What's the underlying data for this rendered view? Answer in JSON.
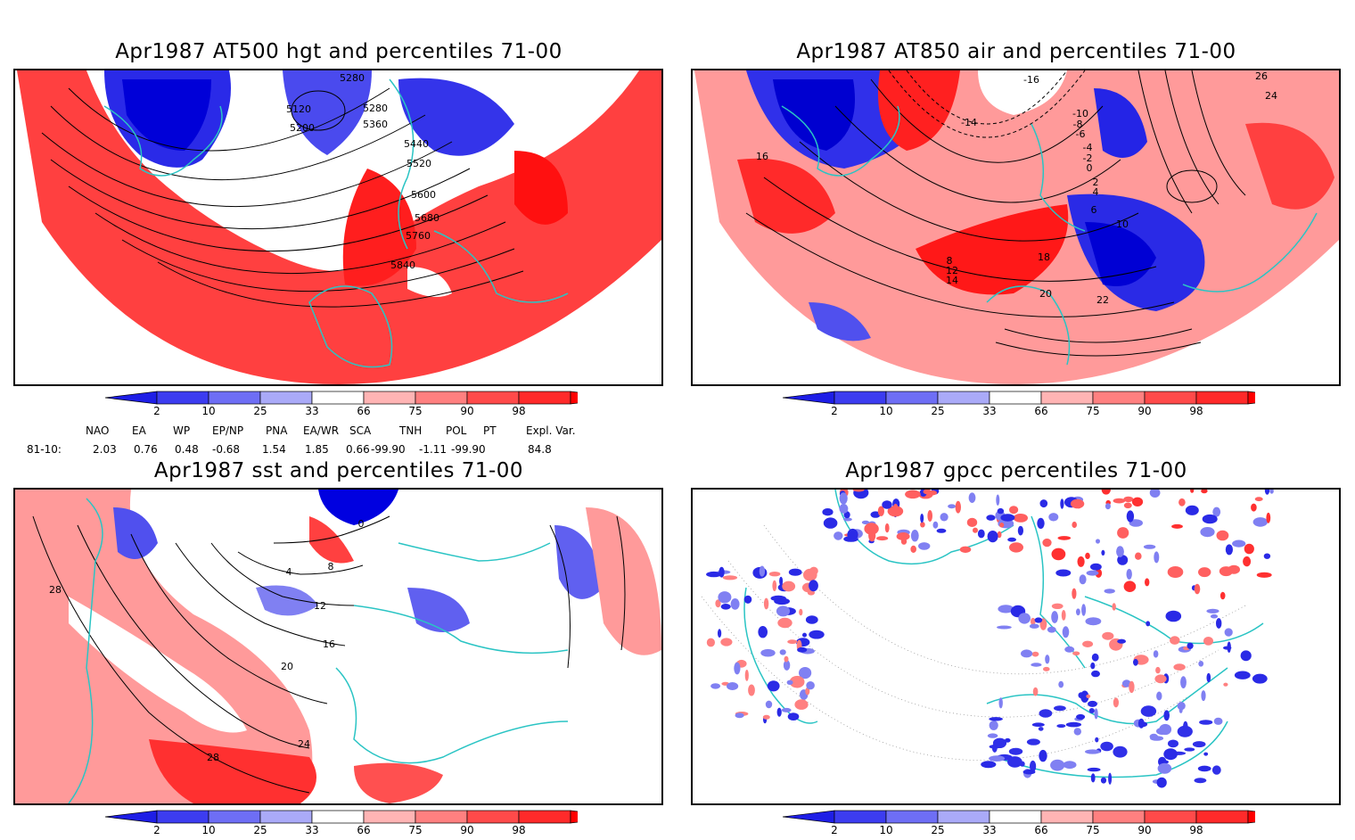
{
  "panels": [
    {
      "id": "p1",
      "title": "Apr1987 AT500 hgt and percentiles 71-00",
      "contour_labels": [
        "5280",
        "5120",
        "5200",
        "5280",
        "5360",
        "5440",
        "5520",
        "5600",
        "5680",
        "5760",
        "5840"
      ]
    },
    {
      "id": "p2",
      "title": "Apr1987 AT850 air and percentiles 71-00",
      "contour_labels": [
        "-16",
        "-14",
        "-10",
        "-8",
        "-6",
        "-4",
        "-2",
        "0",
        "2",
        "4",
        "6",
        "8",
        "10",
        "12",
        "14",
        "16",
        "18",
        "20",
        "22",
        "24",
        "26"
      ]
    },
    {
      "id": "p3",
      "title": "Apr1987 sst and percentiles 71-00",
      "contour_labels": [
        "0",
        "4",
        "8",
        "12",
        "16",
        "20",
        "24",
        "28",
        "28"
      ]
    },
    {
      "id": "p4",
      "title": "Apr1987 gpcc percentiles 71-00",
      "contour_labels": []
    }
  ],
  "colorbar": {
    "ticks": [
      "2",
      "10",
      "25",
      "33",
      "66",
      "75",
      "90",
      "98"
    ],
    "colors": [
      "#1e1ee6",
      "#3c3cf0",
      "#6e6ef5",
      "#aaaaf8",
      "#ffffff",
      "#ffb4b4",
      "#ff8080",
      "#ff4a4a",
      "#ff2a2a",
      "#ff0000"
    ]
  },
  "indices": {
    "headers": [
      "NAO",
      "EA",
      "WP",
      "EP/NP",
      "PNA",
      "EA/WR",
      "SCA",
      "TNH",
      "POL",
      "PT",
      "Expl. Var."
    ],
    "row_label": "81-10:",
    "values": [
      "2.03",
      "0.76",
      "0.48",
      "-0.68",
      "1.54",
      "1.85",
      "0.66",
      "-99.90",
      "-1.11",
      "-99.90",
      "84.8"
    ]
  },
  "colors": {
    "warm": "#ff3c3c",
    "warm_light": "#ff9a9a",
    "cold": "#2828e6",
    "cold_light": "#8080f2",
    "coast": "#2ac4c4",
    "contour": "#000000"
  }
}
